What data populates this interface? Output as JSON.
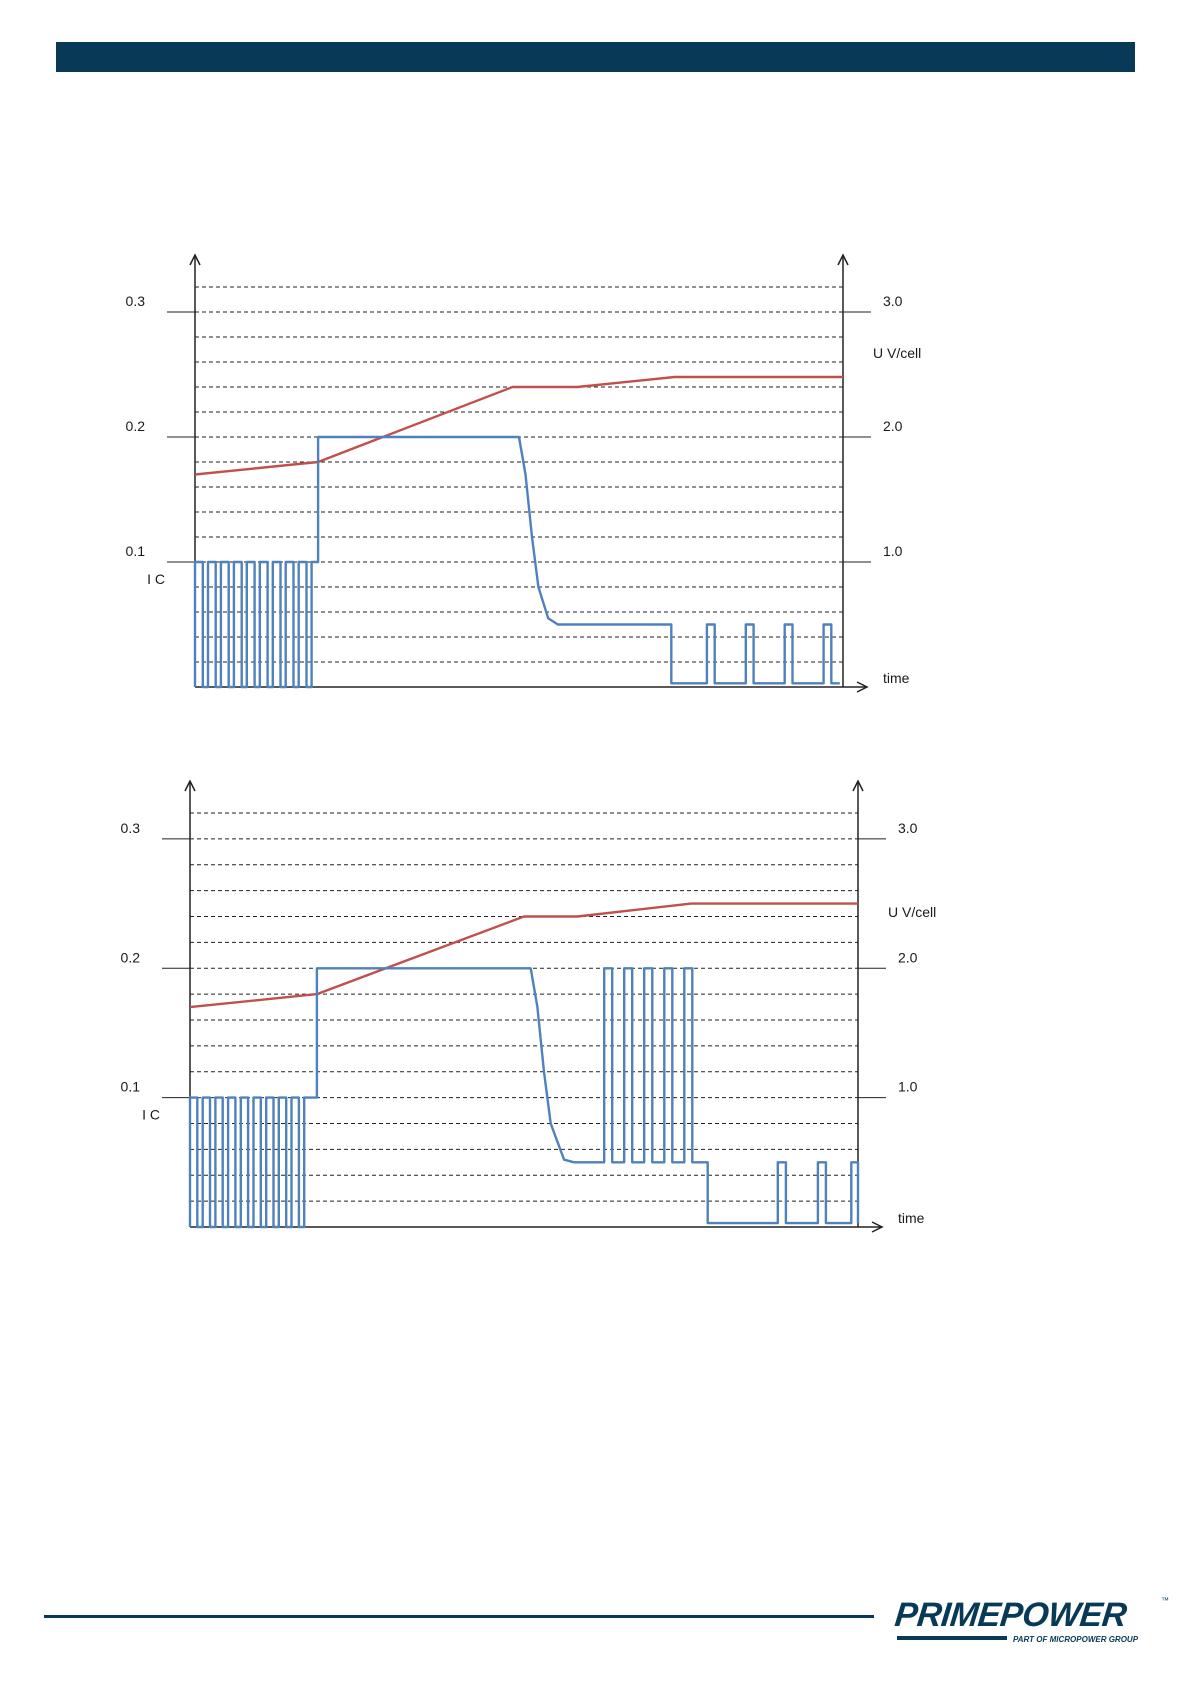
{
  "brand": {
    "name": "PRIMEPOWER",
    "tagline": "PART OF MICROPOWER GROUP",
    "tm": "™",
    "color": "#083a57"
  },
  "chart_data": [
    {
      "type": "line",
      "x_label": "time",
      "left_axis": {
        "ticks": [
          "0.3",
          "0.2",
          "0.1"
        ],
        "tick_values": [
          0.3,
          0.2,
          0.1
        ],
        "label": "I  C",
        "range": [
          0,
          0.32
        ]
      },
      "right_axis": {
        "ticks": [
          "3.0",
          "2.0",
          "1.0"
        ],
        "tick_values": [
          3.0,
          2.0,
          1.0
        ],
        "label": "U  V/cell",
        "range": [
          0,
          3.2
        ]
      },
      "grid": "dashed horizontal",
      "x_range": [
        0,
        100
      ],
      "series": [
        {
          "color": "#c0504d",
          "axis": "right",
          "points": [
            [
              0,
              1.7
            ],
            [
              19,
              1.8
            ],
            [
              49,
              2.4
            ],
            [
              59,
              2.4
            ],
            [
              74,
              2.48
            ],
            [
              100,
              2.48
            ]
          ]
        },
        {
          "color": "#4f81bd",
          "axis": "left",
          "points": [
            [
              0,
              0
            ],
            [
              0,
              0.1
            ],
            [
              1.2,
              0.1
            ],
            [
              1.2,
              0
            ],
            [
              2,
              0
            ],
            [
              2,
              0.1
            ],
            [
              3.2,
              0.1
            ],
            [
              3.2,
              0
            ],
            [
              4,
              0
            ],
            [
              4,
              0.1
            ],
            [
              5.2,
              0.1
            ],
            [
              5.2,
              0
            ],
            [
              6,
              0
            ],
            [
              6,
              0.1
            ],
            [
              7.2,
              0.1
            ],
            [
              7.2,
              0
            ],
            [
              8,
              0
            ],
            [
              8,
              0.1
            ],
            [
              9.2,
              0.1
            ],
            [
              9.2,
              0
            ],
            [
              10,
              0
            ],
            [
              10,
              0.1
            ],
            [
              11.2,
              0.1
            ],
            [
              11.2,
              0
            ],
            [
              12,
              0
            ],
            [
              12,
              0.1
            ],
            [
              13.2,
              0.1
            ],
            [
              13.2,
              0
            ],
            [
              14,
              0
            ],
            [
              14,
              0.1
            ],
            [
              15.2,
              0.1
            ],
            [
              15.2,
              0
            ],
            [
              16,
              0
            ],
            [
              16,
              0.1
            ],
            [
              17.2,
              0.1
            ],
            [
              17.2,
              0
            ],
            [
              18,
              0
            ],
            [
              18,
              0.1
            ],
            [
              19,
              0.1
            ],
            [
              19,
              0.2
            ],
            [
              50,
              0.2
            ],
            [
              51,
              0.17
            ],
            [
              52,
              0.12
            ],
            [
              53,
              0.08
            ],
            [
              54.5,
              0.055
            ],
            [
              56,
              0.05
            ],
            [
              73.5,
              0.05
            ],
            [
              73.5,
              0.003
            ],
            [
              79,
              0.003
            ],
            [
              79,
              0.05
            ],
            [
              80.2,
              0.05
            ],
            [
              80.2,
              0.003
            ],
            [
              85,
              0.003
            ],
            [
              85,
              0.05
            ],
            [
              86.2,
              0.05
            ],
            [
              86.2,
              0.003
            ],
            [
              91,
              0.003
            ],
            [
              91,
              0.05
            ],
            [
              92.2,
              0.05
            ],
            [
              92.2,
              0.003
            ],
            [
              97,
              0.003
            ],
            [
              97,
              0.05
            ],
            [
              98.2,
              0.05
            ],
            [
              98.2,
              0.003
            ],
            [
              99.5,
              0.003
            ]
          ]
        }
      ]
    },
    {
      "type": "line",
      "x_label": "time",
      "left_axis": {
        "ticks": [
          "0.3",
          "0.2",
          "0.1"
        ],
        "tick_values": [
          0.3,
          0.2,
          0.1
        ],
        "label": "I  C",
        "range": [
          0,
          0.32
        ]
      },
      "right_axis": {
        "ticks": [
          "3.0",
          "2.0",
          "1.0"
        ],
        "tick_values": [
          3.0,
          2.0,
          1.0
        ],
        "label": "U  V/cell",
        "range": [
          0,
          3.2
        ]
      },
      "grid": "dashed horizontal",
      "x_range": [
        0,
        100
      ],
      "series": [
        {
          "color": "#c0504d",
          "axis": "right",
          "points": [
            [
              0,
              1.7
            ],
            [
              19,
              1.8
            ],
            [
              50,
              2.4
            ],
            [
              58,
              2.4
            ],
            [
              75,
              2.5
            ],
            [
              100,
              2.5
            ]
          ]
        },
        {
          "color": "#4f81bd",
          "axis": "left",
          "points": [
            [
              0,
              0
            ],
            [
              0,
              0.1
            ],
            [
              1.1,
              0.1
            ],
            [
              1.1,
              0
            ],
            [
              1.9,
              0
            ],
            [
              1.9,
              0.1
            ],
            [
              3.0,
              0.1
            ],
            [
              3.0,
              0
            ],
            [
              3.8,
              0
            ],
            [
              3.8,
              0.1
            ],
            [
              4.9,
              0.1
            ],
            [
              4.9,
              0
            ],
            [
              5.7,
              0
            ],
            [
              5.7,
              0.1
            ],
            [
              6.8,
              0.1
            ],
            [
              6.8,
              0
            ],
            [
              7.6,
              0
            ],
            [
              7.6,
              0.1
            ],
            [
              8.7,
              0.1
            ],
            [
              8.7,
              0
            ],
            [
              9.5,
              0
            ],
            [
              9.5,
              0.1
            ],
            [
              10.6,
              0.1
            ],
            [
              10.6,
              0
            ],
            [
              11.4,
              0
            ],
            [
              11.4,
              0.1
            ],
            [
              12.5,
              0.1
            ],
            [
              12.5,
              0
            ],
            [
              13.3,
              0
            ],
            [
              13.3,
              0.1
            ],
            [
              14.4,
              0.1
            ],
            [
              14.4,
              0
            ],
            [
              15.2,
              0
            ],
            [
              15.2,
              0.1
            ],
            [
              16.3,
              0.1
            ],
            [
              16.3,
              0
            ],
            [
              17.1,
              0
            ],
            [
              17.1,
              0.1
            ],
            [
              19,
              0.1
            ],
            [
              19,
              0.2
            ],
            [
              51,
              0.2
            ],
            [
              52,
              0.17
            ],
            [
              53,
              0.12
            ],
            [
              54,
              0.08
            ],
            [
              56,
              0.052
            ],
            [
              57.5,
              0.05
            ],
            [
              62,
              0.05
            ],
            [
              62,
              0.2
            ],
            [
              63.2,
              0.2
            ],
            [
              63.2,
              0.05
            ],
            [
              65,
              0.05
            ],
            [
              65,
              0.2
            ],
            [
              66.2,
              0.2
            ],
            [
              66.2,
              0.05
            ],
            [
              68,
              0.05
            ],
            [
              68,
              0.2
            ],
            [
              69.2,
              0.2
            ],
            [
              69.2,
              0.05
            ],
            [
              71,
              0.05
            ],
            [
              71,
              0.2
            ],
            [
              72.2,
              0.2
            ],
            [
              72.2,
              0.05
            ],
            [
              74,
              0.05
            ],
            [
              74,
              0.2
            ],
            [
              75.2,
              0.2
            ],
            [
              75.2,
              0.05
            ],
            [
              77.5,
              0.05
            ],
            [
              77.5,
              0.003
            ],
            [
              88,
              0.003
            ],
            [
              88,
              0.05
            ],
            [
              89.2,
              0.05
            ],
            [
              89.2,
              0.003
            ],
            [
              94,
              0.003
            ],
            [
              94,
              0.05
            ],
            [
              95.2,
              0.05
            ],
            [
              95.2,
              0.003
            ],
            [
              99,
              0.003
            ],
            [
              99,
              0.05
            ],
            [
              100,
              0.05
            ],
            [
              100,
              0.003
            ]
          ]
        }
      ]
    }
  ]
}
